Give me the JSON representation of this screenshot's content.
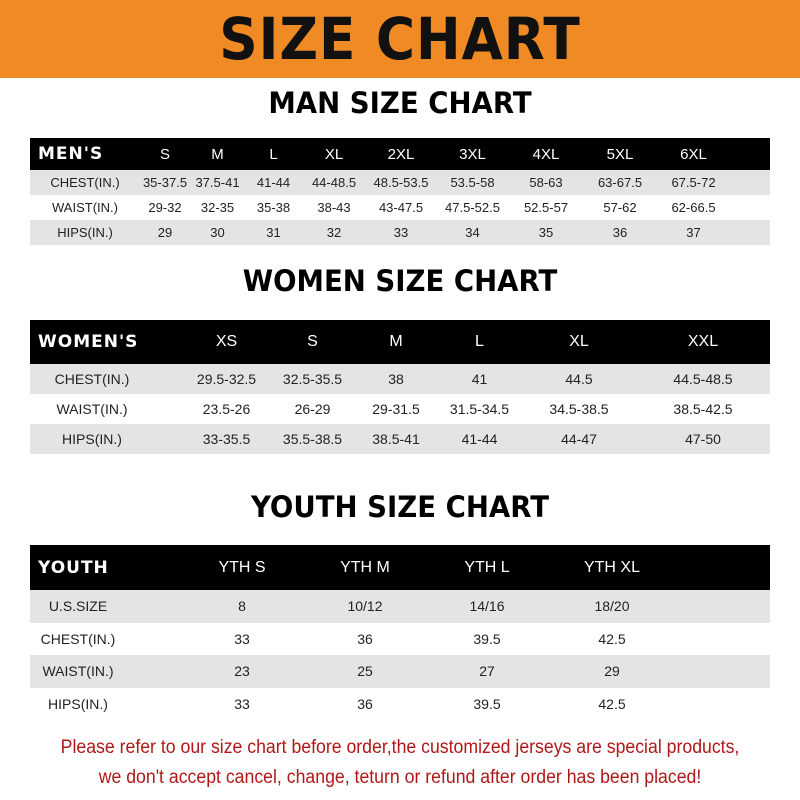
{
  "banner": {
    "title": "SIZE CHART",
    "color": "#f08a24"
  },
  "men": {
    "title": "MAN SIZE CHART",
    "header": [
      "MEN'S",
      "S",
      "M",
      "L",
      "XL",
      "2XL",
      "3XL",
      "4XL",
      "5XL",
      "6XL"
    ],
    "rows": [
      [
        "CHEST(IN.)",
        "35-37.5",
        "37.5-41",
        "41-44",
        "44-48.5",
        "48.5-53.5",
        "53.5-58",
        "58-63",
        "63-67.5",
        "67.5-72"
      ],
      [
        "WAIST(IN.)",
        "29-32",
        "32-35",
        "35-38",
        "38-43",
        "43-47.5",
        "47.5-52.5",
        "52.5-57",
        "57-62",
        "62-66.5"
      ],
      [
        "HIPS(IN.)",
        "29",
        "30",
        "31",
        "32",
        "33",
        "34",
        "35",
        "36",
        "37"
      ]
    ]
  },
  "women": {
    "title": "WOMEN SIZE CHART",
    "header": [
      "WOMEN'S",
      "XS",
      "S",
      "M",
      "L",
      "XL",
      "XXL"
    ],
    "rows": [
      [
        "CHEST(IN.)",
        "29.5-32.5",
        "32.5-35.5",
        "38",
        "41",
        "44.5",
        "44.5-48.5"
      ],
      [
        "WAIST(IN.)",
        "23.5-26",
        "26-29",
        "29-31.5",
        "31.5-34.5",
        "34.5-38.5",
        "38.5-42.5"
      ],
      [
        "HIPS(IN.)",
        "33-35.5",
        "35.5-38.5",
        "38.5-41",
        "41-44",
        "44-47",
        "47-50"
      ]
    ]
  },
  "youth": {
    "title": "YOUTH SIZE CHART",
    "header": [
      "YOUTH",
      "YTH S",
      "YTH M",
      "YTH L",
      "YTH XL"
    ],
    "rows": [
      [
        "U.S.SIZE",
        "8",
        "10/12",
        "14/16",
        "18/20"
      ],
      [
        "CHEST(IN.)",
        "33",
        "36",
        "39.5",
        "42.5"
      ],
      [
        "WAIST(IN.)",
        "23",
        "25",
        "27",
        "29"
      ],
      [
        "HIPS(IN.)",
        "33",
        "36",
        "39.5",
        "42.5"
      ]
    ]
  },
  "note": {
    "line1": "Please refer to our size chart before order,the customized jerseys are special products,",
    "line2": "we don't accept cancel, change, teturn or refund after order has been placed!",
    "color": "#b01818"
  }
}
